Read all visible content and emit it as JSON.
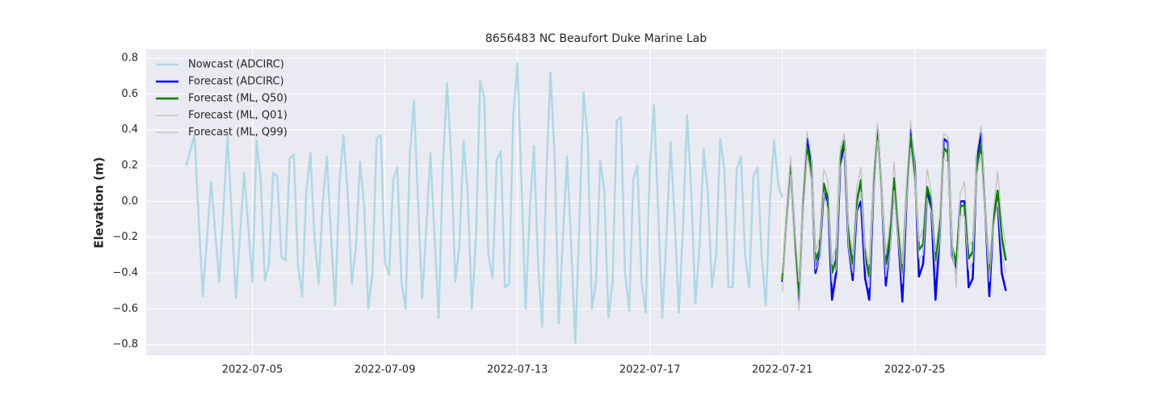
{
  "chart_data": {
    "type": "line",
    "title": "8656483 NC Beaufort Duke Marine Lab",
    "ylabel": "Elevation (m)",
    "xlim": [
      "2022-07-01 19:00",
      "2022-07-28 23:00"
    ],
    "ylim": [
      -0.86,
      0.85
    ],
    "xticks": [
      "2022-07-05",
      "2022-07-09",
      "2022-07-13",
      "2022-07-17",
      "2022-07-21",
      "2022-07-25"
    ],
    "yticks": [
      {
        "value": -0.8,
        "label": "−0.8"
      },
      {
        "value": -0.6,
        "label": "−0.6"
      },
      {
        "value": -0.4,
        "label": "−0.4"
      },
      {
        "value": -0.2,
        "label": "−0.2"
      },
      {
        "value": 0,
        "label": "0.0"
      },
      0.2,
      0.4,
      0.6,
      0.8
    ],
    "grid": true,
    "legend": "upper left",
    "series": [
      {
        "name": "Nowcast (ADCIRC)",
        "color": "#add8e6",
        "width": 2.5,
        "x": [
          "2022-07-03 00:00",
          "2022-07-03 06:00",
          "2022-07-03 12:00",
          "2022-07-03 18:00",
          "2022-07-04 00:00",
          "2022-07-04 06:00",
          "2022-07-04 12:00",
          "2022-07-04 18:00",
          "2022-07-05 00:00",
          "2022-07-05 03:00",
          "2022-07-05 06:00",
          "2022-07-05 09:00",
          "2022-07-05 12:00",
          "2022-07-05 15:00",
          "2022-07-05 18:00",
          "2022-07-05 21:00",
          "2022-07-06 00:00",
          "2022-07-06 03:00",
          "2022-07-06 06:00",
          "2022-07-06 09:00",
          "2022-07-06 12:00",
          "2022-07-06 15:00",
          "2022-07-06 18:00",
          "2022-07-06 21:00",
          "2022-07-07 00:00",
          "2022-07-07 03:00",
          "2022-07-07 06:00",
          "2022-07-07 09:00",
          "2022-07-07 12:00",
          "2022-07-07 15:00",
          "2022-07-07 18:00",
          "2022-07-07 21:00",
          "2022-07-08 00:00",
          "2022-07-08 03:00",
          "2022-07-08 06:00",
          "2022-07-08 09:00",
          "2022-07-08 12:00",
          "2022-07-08 15:00",
          "2022-07-08 18:00",
          "2022-07-08 21:00",
          "2022-07-09 00:00",
          "2022-07-09 03:00",
          "2022-07-09 06:00",
          "2022-07-09 09:00",
          "2022-07-09 12:00",
          "2022-07-09 15:00",
          "2022-07-09 18:00",
          "2022-07-09 21:00",
          "2022-07-10 00:00",
          "2022-07-10 03:00",
          "2022-07-10 06:00",
          "2022-07-10 09:00",
          "2022-07-10 12:00",
          "2022-07-10 15:00",
          "2022-07-10 18:00",
          "2022-07-10 21:00",
          "2022-07-11 00:00",
          "2022-07-11 03:00",
          "2022-07-11 06:00",
          "2022-07-11 09:00",
          "2022-07-11 12:00",
          "2022-07-11 15:00",
          "2022-07-11 18:00",
          "2022-07-11 21:00",
          "2022-07-12 00:00",
          "2022-07-12 03:00",
          "2022-07-12 06:00",
          "2022-07-12 09:00",
          "2022-07-12 12:00",
          "2022-07-12 15:00",
          "2022-07-12 18:00",
          "2022-07-12 21:00",
          "2022-07-13 00:00",
          "2022-07-13 03:00",
          "2022-07-13 06:00",
          "2022-07-13 09:00",
          "2022-07-13 12:00",
          "2022-07-13 15:00",
          "2022-07-13 18:00",
          "2022-07-13 21:00",
          "2022-07-14 00:00",
          "2022-07-14 03:00",
          "2022-07-14 06:00",
          "2022-07-14 09:00",
          "2022-07-14 12:00",
          "2022-07-14 15:00",
          "2022-07-14 18:00",
          "2022-07-14 21:00",
          "2022-07-15 00:00",
          "2022-07-15 03:00",
          "2022-07-15 06:00",
          "2022-07-15 09:00",
          "2022-07-15 12:00",
          "2022-07-15 15:00",
          "2022-07-15 18:00",
          "2022-07-15 21:00",
          "2022-07-16 00:00",
          "2022-07-16 03:00",
          "2022-07-16 06:00",
          "2022-07-16 09:00",
          "2022-07-16 12:00",
          "2022-07-16 15:00",
          "2022-07-16 18:00",
          "2022-07-16 21:00",
          "2022-07-17 00:00",
          "2022-07-17 03:00",
          "2022-07-17 06:00",
          "2022-07-17 09:00",
          "2022-07-17 12:00",
          "2022-07-17 15:00",
          "2022-07-17 18:00",
          "2022-07-17 21:00",
          "2022-07-18 00:00",
          "2022-07-18 03:00",
          "2022-07-18 06:00",
          "2022-07-18 09:00",
          "2022-07-18 12:00",
          "2022-07-18 15:00",
          "2022-07-18 18:00",
          "2022-07-18 21:00",
          "2022-07-19 00:00",
          "2022-07-19 03:00",
          "2022-07-19 06:00",
          "2022-07-19 09:00",
          "2022-07-19 12:00",
          "2022-07-19 15:00",
          "2022-07-19 18:00",
          "2022-07-19 21:00",
          "2022-07-20 00:00",
          "2022-07-20 03:00",
          "2022-07-20 06:00",
          "2022-07-20 09:00",
          "2022-07-20 12:00",
          "2022-07-20 15:00",
          "2022-07-20 18:00",
          "2022-07-20 21:00",
          "2022-07-21 00:00"
        ],
        "values": [
          0.2,
          0.37,
          -0.53,
          0.11,
          -0.45,
          0.37,
          -0.54,
          0.16,
          -0.45,
          0.34,
          0.12,
          -0.44,
          -0.35,
          0.16,
          0.14,
          -0.31,
          -0.33,
          0.24,
          0.26,
          -0.35,
          -0.53,
          0.05,
          0.27,
          -0.2,
          -0.46,
          0.0,
          0.25,
          -0.2,
          -0.58,
          0.1,
          0.37,
          0.05,
          -0.46,
          -0.25,
          0.22,
          -0.03,
          -0.6,
          -0.4,
          0.35,
          0.37,
          -0.34,
          -0.41,
          0.12,
          0.19,
          -0.45,
          -0.6,
          0.25,
          0.56,
          0.0,
          -0.54,
          -0.15,
          0.27,
          -0.2,
          -0.65,
          0.2,
          0.66,
          0.25,
          -0.45,
          -0.25,
          0.34,
          0.05,
          -0.6,
          -0.2,
          0.67,
          0.58,
          -0.3,
          -0.43,
          0.23,
          0.28,
          -0.48,
          -0.46,
          0.48,
          0.77,
          0.1,
          -0.6,
          -0.05,
          0.31,
          -0.35,
          -0.7,
          0.15,
          0.72,
          0.25,
          -0.68,
          -0.2,
          0.25,
          -0.25,
          -0.79,
          -0.1,
          0.61,
          0.35,
          -0.6,
          -0.45,
          0.23,
          0.05,
          -0.65,
          -0.45,
          0.45,
          0.47,
          -0.4,
          -0.61,
          0.12,
          0.2,
          -0.45,
          -0.62,
          0.2,
          0.54,
          -0.05,
          -0.65,
          -0.2,
          0.33,
          -0.1,
          -0.62,
          -0.15,
          0.48,
          0.05,
          -0.57,
          -0.25,
          0.29,
          0.05,
          -0.48,
          -0.3,
          0.35,
          0.18,
          -0.48,
          -0.48,
          0.18,
          0.25,
          -0.3,
          -0.48,
          0.14,
          0.19,
          -0.3,
          -0.58,
          0.0,
          0.34,
          0.1,
          0.02
        ]
      },
      {
        "name": "Forecast (ADCIRC)",
        "color": "#0000ff",
        "width": 2.5,
        "x": [
          "2022-07-21 00:00",
          "2022-07-21 03:00",
          "2022-07-21 06:00",
          "2022-07-21 09:00",
          "2022-07-21 12:00",
          "2022-07-21 15:00",
          "2022-07-21 18:00",
          "2022-07-21 21:00",
          "2022-07-22 00:00",
          "2022-07-22 03:00",
          "2022-07-22 06:00",
          "2022-07-22 09:00",
          "2022-07-22 12:00",
          "2022-07-22 15:00",
          "2022-07-22 18:00",
          "2022-07-22 21:00",
          "2022-07-23 00:00",
          "2022-07-23 03:00",
          "2022-07-23 06:00",
          "2022-07-23 09:00",
          "2022-07-23 12:00",
          "2022-07-23 15:00",
          "2022-07-23 18:00",
          "2022-07-23 21:00",
          "2022-07-24 00:00",
          "2022-07-24 03:00",
          "2022-07-24 06:00",
          "2022-07-24 09:00",
          "2022-07-24 12:00",
          "2022-07-24 15:00",
          "2022-07-24 18:00",
          "2022-07-24 21:00",
          "2022-07-25 00:00",
          "2022-07-25 03:00",
          "2022-07-25 06:00",
          "2022-07-25 09:00",
          "2022-07-25 12:00",
          "2022-07-25 15:00",
          "2022-07-25 18:00",
          "2022-07-25 21:00",
          "2022-07-26 00:00",
          "2022-07-26 03:00",
          "2022-07-26 06:00",
          "2022-07-26 09:00",
          "2022-07-26 12:00",
          "2022-07-26 15:00",
          "2022-07-26 18:00",
          "2022-07-26 21:00",
          "2022-07-27 00:00",
          "2022-07-27 03:00",
          "2022-07-27 06:00",
          "2022-07-27 09:00",
          "2022-07-27 12:00",
          "2022-07-27 15:00",
          "2022-07-27 18:00"
        ],
        "values": [
          -0.45,
          -0.1,
          0.18,
          -0.2,
          -0.56,
          0.0,
          0.35,
          0.22,
          -0.4,
          -0.3,
          0.05,
          0.0,
          -0.55,
          -0.4,
          0.2,
          0.3,
          -0.25,
          -0.44,
          -0.05,
          0.0,
          -0.43,
          -0.55,
          0.05,
          0.4,
          0.05,
          -0.47,
          -0.25,
          0.1,
          -0.2,
          -0.56,
          0.0,
          0.4,
          0.2,
          -0.42,
          -0.35,
          0.05,
          -0.05,
          -0.55,
          -0.2,
          0.35,
          0.33,
          -0.3,
          -0.38,
          0.0,
          0.0,
          -0.48,
          -0.43,
          0.25,
          0.38,
          -0.05,
          -0.53,
          -0.1,
          0.0,
          -0.4,
          -0.5
        ]
      },
      {
        "name": "Forecast (ML, Q50)",
        "color": "#008000",
        "width": 2.5,
        "x": [
          "2022-07-21 00:00",
          "2022-07-21 03:00",
          "2022-07-21 06:00",
          "2022-07-21 09:00",
          "2022-07-21 12:00",
          "2022-07-21 15:00",
          "2022-07-21 18:00",
          "2022-07-21 21:00",
          "2022-07-22 00:00",
          "2022-07-22 03:00",
          "2022-07-22 06:00",
          "2022-07-22 09:00",
          "2022-07-22 12:00",
          "2022-07-22 15:00",
          "2022-07-22 18:00",
          "2022-07-22 21:00",
          "2022-07-23 00:00",
          "2022-07-23 03:00",
          "2022-07-23 06:00",
          "2022-07-23 09:00",
          "2022-07-23 12:00",
          "2022-07-23 15:00",
          "2022-07-23 18:00",
          "2022-07-23 21:00",
          "2022-07-24 00:00",
          "2022-07-24 03:00",
          "2022-07-24 06:00",
          "2022-07-24 09:00",
          "2022-07-24 12:00",
          "2022-07-24 15:00",
          "2022-07-24 18:00",
          "2022-07-24 21:00",
          "2022-07-25 00:00",
          "2022-07-25 03:00",
          "2022-07-25 06:00",
          "2022-07-25 09:00",
          "2022-07-25 12:00",
          "2022-07-25 15:00",
          "2022-07-25 18:00",
          "2022-07-25 21:00",
          "2022-07-26 00:00",
          "2022-07-26 03:00",
          "2022-07-26 06:00",
          "2022-07-26 09:00",
          "2022-07-26 12:00",
          "2022-07-26 15:00",
          "2022-07-26 18:00",
          "2022-07-26 21:00",
          "2022-07-27 00:00",
          "2022-07-27 03:00",
          "2022-07-27 06:00",
          "2022-07-27 09:00",
          "2022-07-27 12:00",
          "2022-07-27 15:00",
          "2022-07-27 18:00"
        ],
        "values": [
          -0.44,
          -0.1,
          0.2,
          -0.2,
          -0.52,
          -0.02,
          0.3,
          0.18,
          -0.33,
          -0.27,
          0.1,
          0.02,
          -0.4,
          -0.32,
          0.25,
          0.34,
          -0.2,
          -0.35,
          0.0,
          0.12,
          -0.3,
          -0.42,
          0.08,
          0.4,
          0.05,
          -0.35,
          -0.2,
          0.13,
          -0.15,
          -0.4,
          0.05,
          0.36,
          0.15,
          -0.27,
          -0.24,
          0.08,
          0.0,
          -0.33,
          -0.15,
          0.3,
          0.27,
          -0.25,
          -0.35,
          -0.03,
          -0.02,
          -0.32,
          -0.28,
          0.2,
          0.32,
          -0.05,
          -0.4,
          -0.1,
          0.06,
          -0.2,
          -0.33
        ]
      },
      {
        "name": "Forecast (ML, Q01)",
        "color": "#bfbfbf",
        "width": 1.2,
        "x": [
          "2022-07-21 00:00",
          "2022-07-21 03:00",
          "2022-07-21 06:00",
          "2022-07-21 09:00",
          "2022-07-21 12:00",
          "2022-07-21 15:00",
          "2022-07-21 18:00",
          "2022-07-21 21:00",
          "2022-07-22 00:00",
          "2022-07-22 03:00",
          "2022-07-22 06:00",
          "2022-07-22 09:00",
          "2022-07-22 12:00",
          "2022-07-22 15:00",
          "2022-07-22 18:00",
          "2022-07-22 21:00",
          "2022-07-23 00:00",
          "2022-07-23 03:00",
          "2022-07-23 06:00",
          "2022-07-23 09:00",
          "2022-07-23 12:00",
          "2022-07-23 15:00",
          "2022-07-23 18:00",
          "2022-07-23 21:00",
          "2022-07-24 00:00",
          "2022-07-24 03:00",
          "2022-07-24 06:00",
          "2022-07-24 09:00",
          "2022-07-24 12:00",
          "2022-07-24 15:00",
          "2022-07-24 18:00",
          "2022-07-24 21:00",
          "2022-07-25 00:00",
          "2022-07-25 03:00",
          "2022-07-25 06:00",
          "2022-07-25 09:00",
          "2022-07-25 12:00",
          "2022-07-25 15:00",
          "2022-07-25 18:00",
          "2022-07-25 21:00",
          "2022-07-26 00:00",
          "2022-07-26 03:00",
          "2022-07-26 06:00",
          "2022-07-26 09:00",
          "2022-07-26 12:00",
          "2022-07-26 15:00",
          "2022-07-26 18:00",
          "2022-07-26 21:00",
          "2022-07-27 00:00",
          "2022-07-27 03:00",
          "2022-07-27 06:00",
          "2022-07-27 09:00",
          "2022-07-27 12:00",
          "2022-07-27 15:00",
          "2022-07-27 18:00"
        ],
        "values": [
          -0.51,
          -0.15,
          0.15,
          -0.28,
          -0.61,
          -0.08,
          0.26,
          0.12,
          -0.38,
          -0.32,
          0.05,
          -0.05,
          -0.45,
          -0.38,
          0.18,
          0.28,
          -0.26,
          -0.4,
          -0.05,
          0.05,
          -0.35,
          -0.48,
          0.02,
          0.34,
          0.0,
          -0.42,
          -0.28,
          0.06,
          -0.22,
          -0.46,
          -0.02,
          0.3,
          0.1,
          -0.32,
          -0.3,
          0.02,
          -0.06,
          -0.38,
          -0.22,
          0.24,
          0.22,
          -0.3,
          -0.4,
          -0.08,
          -0.08,
          -0.38,
          -0.34,
          0.15,
          0.26,
          -0.1,
          -0.45,
          -0.15,
          0.0,
          -0.28,
          -0.4
        ]
      },
      {
        "name": "Forecast (ML, Q99)",
        "color": "#bfbfbf",
        "width": 1.2,
        "x": [
          "2022-07-21 00:00",
          "2022-07-21 03:00",
          "2022-07-21 06:00",
          "2022-07-21 09:00",
          "2022-07-21 12:00",
          "2022-07-21 15:00",
          "2022-07-21 18:00",
          "2022-07-21 21:00",
          "2022-07-22 00:00",
          "2022-07-22 03:00",
          "2022-07-22 06:00",
          "2022-07-22 09:00",
          "2022-07-22 12:00",
          "2022-07-22 15:00",
          "2022-07-22 18:00",
          "2022-07-22 21:00",
          "2022-07-23 00:00",
          "2022-07-23 03:00",
          "2022-07-23 06:00",
          "2022-07-23 09:00",
          "2022-07-23 12:00",
          "2022-07-23 15:00",
          "2022-07-23 18:00",
          "2022-07-23 21:00",
          "2022-07-24 00:00",
          "2022-07-24 03:00",
          "2022-07-24 06:00",
          "2022-07-24 09:00",
          "2022-07-24 12:00",
          "2022-07-24 15:00",
          "2022-07-24 18:00",
          "2022-07-24 21:00",
          "2022-07-25 00:00",
          "2022-07-25 03:00",
          "2022-07-25 06:00",
          "2022-07-25 09:00",
          "2022-07-25 12:00",
          "2022-07-25 15:00",
          "2022-07-25 18:00",
          "2022-07-25 21:00",
          "2022-07-26 00:00",
          "2022-07-26 03:00",
          "2022-07-26 06:00",
          "2022-07-26 09:00",
          "2022-07-26 12:00",
          "2022-07-26 15:00",
          "2022-07-26 18:00",
          "2022-07-26 21:00",
          "2022-07-27 00:00",
          "2022-07-27 03:00",
          "2022-07-27 06:00",
          "2022-07-27 09:00",
          "2022-07-27 12:00",
          "2022-07-27 15:00",
          "2022-07-27 18:00"
        ],
        "values": [
          -0.4,
          -0.05,
          0.25,
          -0.15,
          -0.45,
          0.05,
          0.39,
          0.25,
          -0.28,
          -0.2,
          0.18,
          0.12,
          -0.35,
          -0.25,
          0.3,
          0.38,
          -0.12,
          -0.3,
          0.08,
          0.19,
          -0.25,
          -0.35,
          0.15,
          0.44,
          0.1,
          -0.3,
          -0.12,
          0.22,
          -0.1,
          -0.35,
          0.1,
          0.45,
          0.2,
          -0.22,
          -0.15,
          0.18,
          0.05,
          -0.28,
          -0.08,
          0.38,
          0.36,
          -0.2,
          -0.48,
          0.05,
          0.11,
          -0.25,
          -0.22,
          0.28,
          0.42,
          0.0,
          -0.35,
          -0.05,
          0.17,
          -0.1,
          -0.25
        ]
      }
    ]
  }
}
